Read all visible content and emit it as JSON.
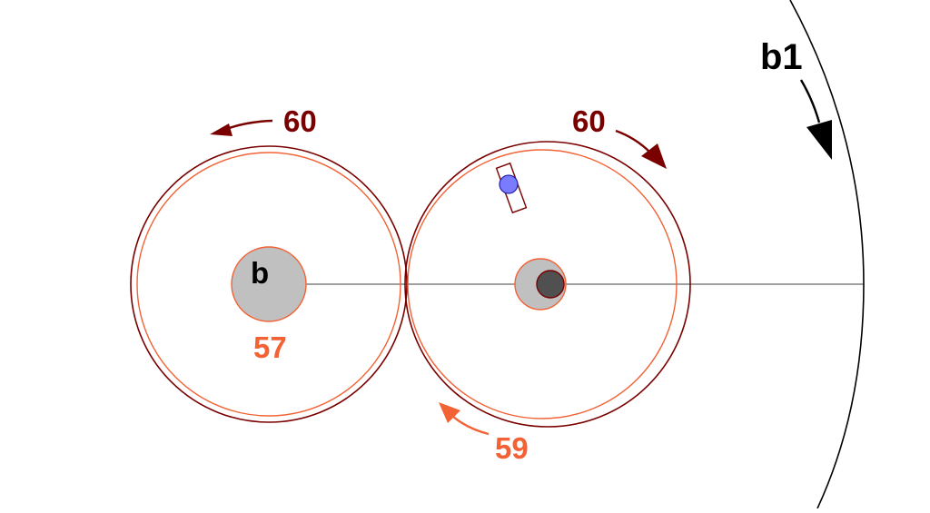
{
  "colors": {
    "dark_red": "#7a0000",
    "orange": "#f26235",
    "black": "#000000",
    "gray_hub": "#c0c0c0",
    "dark_pin": "#505050",
    "blue_pin": "#7b7bff"
  },
  "labels": {
    "big_arc": "b1",
    "left_gear_top": "60",
    "right_gear_top": "60",
    "left_hub": "b",
    "left_inner_gear": "57",
    "right_inner_gear": "59"
  }
}
